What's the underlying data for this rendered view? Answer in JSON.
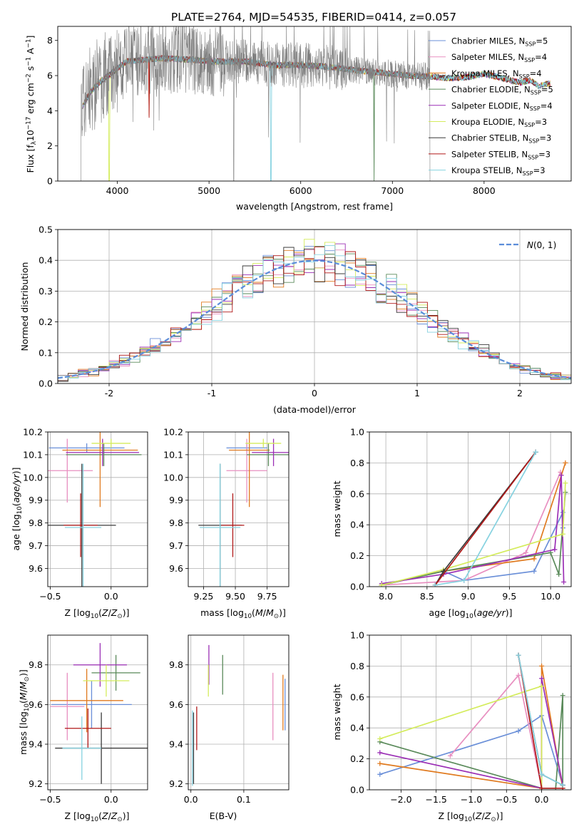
{
  "title": "PLATE=2764, MJD=54535, FIBERID=0414, z=0.057",
  "colors": {
    "gray": "#808080",
    "ch_miles": "#6a8fd8",
    "sa_miles": "#e88fc0",
    "kr_miles": "#e07a1f",
    "ch_elodie": "#5a8a5a",
    "sa_elodie": "#9b2fb5",
    "kr_elodie": "#d4ec5c",
    "ch_stelib": "#3a3a3a",
    "sa_stelib": "#b01818",
    "kr_stelib": "#86d2e0",
    "gauss": "#5b8dd9",
    "grid": "#b0b0b0"
  },
  "legend": [
    {
      "key": "ch_miles",
      "label": "Chabrier MILES, N",
      "n": "=5"
    },
    {
      "key": "sa_miles",
      "label": "Salpeter MILES, N",
      "n": "=4"
    },
    {
      "key": "kr_miles",
      "label": "Kroupa MILES, N",
      "n": "=4"
    },
    {
      "key": "ch_elodie",
      "label": "Chabrier ELODIE, N",
      "n": "=5"
    },
    {
      "key": "sa_elodie",
      "label": "Salpeter ELODIE, N",
      "n": "=4"
    },
    {
      "key": "kr_elodie",
      "label": "Kroupa ELODIE, N",
      "n": "=3"
    },
    {
      "key": "ch_stelib",
      "label": "Chabrier STELIB, N",
      "n": "=3"
    },
    {
      "key": "sa_stelib",
      "label": "Salpeter STELIB, N",
      "n": "=3"
    },
    {
      "key": "kr_stelib",
      "label": "Kroupa STELIB, N",
      "n": "=3"
    }
  ],
  "legend_sub": "SSP",
  "chart_data": [
    {
      "id": "spectrum",
      "type": "line",
      "xlabel": "wavelength [Angstrom, rest frame]",
      "ylabel_parts": [
        "Flux [f",
        "λ",
        "10",
        "−17",
        " erg cm",
        "−2",
        " s",
        "−1",
        " A",
        "−1",
        "]"
      ],
      "xlim": [
        3350,
        8950
      ],
      "ylim": [
        0,
        8.8
      ],
      "xticks": [
        4000,
        5000,
        6000,
        7000,
        8000
      ],
      "yticks": [
        0,
        2,
        4,
        6,
        8
      ],
      "continuum": [
        [
          3600,
          4.1
        ],
        [
          3700,
          5.0
        ],
        [
          3800,
          5.6
        ],
        [
          3900,
          6.0
        ],
        [
          4000,
          6.4
        ],
        [
          4100,
          6.8
        ],
        [
          4300,
          6.9
        ],
        [
          4500,
          7.0
        ],
        [
          4800,
          6.9
        ],
        [
          5100,
          6.8
        ],
        [
          5400,
          6.8
        ],
        [
          5700,
          6.6
        ],
        [
          6000,
          6.6
        ],
        [
          6300,
          6.5
        ],
        [
          6600,
          6.3
        ],
        [
          6800,
          6.2
        ],
        [
          7000,
          6.1
        ],
        [
          7200,
          6.0
        ],
        [
          7400,
          5.95
        ],
        [
          7600,
          5.85
        ],
        [
          7800,
          5.9
        ],
        [
          8000,
          6.1
        ],
        [
          8200,
          5.85
        ],
        [
          8400,
          5.6
        ],
        [
          8500,
          5.75
        ],
        [
          8600,
          5.4
        ],
        [
          8700,
          5.55
        ]
      ],
      "spectrum_range": [
        3600,
        7420
      ],
      "model_range": [
        3620,
        8720
      ]
    },
    {
      "id": "residuals",
      "type": "step",
      "xlabel": "(data-model)/error",
      "ylabel": "Normed distribution",
      "xlim": [
        -2.5,
        2.5
      ],
      "ylim": [
        0,
        0.5
      ],
      "xticks": [
        -2,
        -1,
        0,
        1,
        2
      ],
      "yticks": [
        0.0,
        0.1,
        0.2,
        0.3,
        0.4,
        0.5
      ],
      "ytick_labels": [
        "0.0",
        "0.1",
        "0.2",
        "0.3",
        "0.4",
        "0.5"
      ],
      "legend_label": "N(0,1)",
      "bins": 50
    },
    {
      "id": "age_Z",
      "type": "errorbar",
      "xlabel": "Z [log10(Z/Z⊙)]",
      "ylabel": "age  [log10(age/yr)]",
      "xlim": [
        -0.52,
        0.3
      ],
      "ylim": [
        9.52,
        10.2
      ],
      "xticks": [
        -0.5,
        0.0
      ],
      "xtick_labels": [
        "−0.5",
        "0.0"
      ],
      "yticks": [
        9.6,
        9.7,
        9.8,
        9.9,
        10.0,
        10.1,
        10.2
      ],
      "ytick_labels": [
        "9.6",
        "9.7",
        "9.8",
        "9.9",
        "10.0",
        "10.1",
        "10.2"
      ],
      "points": [
        {
          "key": "ch_miles",
          "x": -0.2,
          "y": 10.13,
          "xe": 0.31,
          "ye": 0.02
        },
        {
          "key": "sa_miles",
          "x": -0.36,
          "y": 10.03,
          "xe": 0.21,
          "ye": 0.14
        },
        {
          "key": "kr_miles",
          "x": -0.09,
          "y": 10.12,
          "xe": 0.31,
          "ye": 0.25
        },
        {
          "key": "ch_elodie",
          "x": -0.06,
          "y": 10.1,
          "xe": 0.31,
          "ye": 0.05
        },
        {
          "key": "sa_elodie",
          "x": -0.07,
          "y": 10.11,
          "xe": 0.3,
          "ye": 0.06
        },
        {
          "key": "kr_elodie",
          "x": 0.0,
          "y": 10.15,
          "xe": 0.16,
          "ye": 0.02
        },
        {
          "key": "ch_stelib",
          "x": -0.24,
          "y": 9.79,
          "xe": 0.28,
          "ye": 0.27
        },
        {
          "key": "sa_stelib",
          "x": -0.25,
          "y": 9.79,
          "xe": 0.14,
          "ye": 0.14
        },
        {
          "key": "kr_stelib",
          "x": -0.23,
          "y": 9.78,
          "xe": 0.15,
          "ye": 0.28
        }
      ]
    },
    {
      "id": "age_mass",
      "type": "errorbar",
      "xlabel": "mass [log10(M/M⊙)]",
      "ylabel": "",
      "xlim": [
        9.13,
        9.92
      ],
      "ylim": [
        9.52,
        10.2
      ],
      "xticks": [
        9.25,
        9.5,
        9.75
      ],
      "xtick_labels": [
        "9.25",
        "9.50",
        "9.75"
      ],
      "yticks": [
        9.6,
        9.7,
        9.8,
        9.9,
        10.0,
        10.1,
        10.2
      ],
      "ytick_labels": [
        "9.6",
        "9.7",
        "9.8",
        "9.9",
        "10.0",
        "10.1",
        "10.2"
      ],
      "points": [
        {
          "key": "ch_miles",
          "x": 9.59,
          "y": 10.13,
          "xe": 0.16,
          "ye": 0.02
        },
        {
          "key": "sa_miles",
          "x": 9.59,
          "y": 10.03,
          "xe": 0.16,
          "ye": 0.14
        },
        {
          "key": "kr_miles",
          "x": 9.61,
          "y": 10.12,
          "xe": 0.16,
          "ye": 0.25
        },
        {
          "key": "ch_elodie",
          "x": 9.76,
          "y": 10.1,
          "xe": 0.17,
          "ye": 0.05
        },
        {
          "key": "sa_elodie",
          "x": 9.8,
          "y": 10.11,
          "xe": 0.17,
          "ye": 0.06
        },
        {
          "key": "kr_elodie",
          "x": 9.72,
          "y": 10.15,
          "xe": 0.14,
          "ye": 0.02
        },
        {
          "key": "ch_stelib",
          "x": 9.38,
          "y": 9.79,
          "xe": 0.17,
          "ye": 0.27
        },
        {
          "key": "sa_stelib",
          "x": 9.48,
          "y": 9.79,
          "xe": 0.09,
          "ye": 0.14
        },
        {
          "key": "kr_stelib",
          "x": 9.38,
          "y": 9.78,
          "xe": 0.16,
          "ye": 0.28
        }
      ]
    },
    {
      "id": "weight_age",
      "type": "line",
      "xlabel": "age  [log10(age/yr)]",
      "ylabel": "mass weight",
      "xlim": [
        7.8,
        10.25
      ],
      "ylim": [
        0,
        1.0
      ],
      "xticks": [
        8.0,
        8.5,
        9.0,
        9.5,
        10.0
      ],
      "xtick_labels": [
        "8.0",
        "8.5",
        "9.0",
        "9.5",
        "10.0"
      ],
      "yticks": [
        0.0,
        0.2,
        0.4,
        0.6,
        0.8,
        1.0
      ],
      "ytick_labels": [
        "0.0",
        "0.2",
        "0.4",
        "0.6",
        "0.8",
        "1.0"
      ],
      "series": [
        {
          "key": "ch_miles",
          "pts": [
            [
              7.95,
              0.01
            ],
            [
              8.7,
              0.1
            ],
            [
              8.95,
              0.04
            ],
            [
              9.8,
              0.1
            ],
            [
              10.15,
              0.48
            ],
            [
              10.15,
              0.38
            ]
          ]
        },
        {
          "key": "sa_miles",
          "pts": [
            [
              7.95,
              0.01
            ],
            [
              8.95,
              0.04
            ],
            [
              9.7,
              0.22
            ],
            [
              10.12,
              0.74
            ]
          ]
        },
        {
          "key": "kr_miles",
          "pts": [
            [
              7.95,
              0.01
            ],
            [
              8.7,
              0.1
            ],
            [
              9.8,
              0.18
            ],
            [
              10.18,
              0.8
            ]
          ]
        },
        {
          "key": "ch_elodie",
          "pts": [
            [
              7.95,
              0.01
            ],
            [
              8.7,
              0.1
            ],
            [
              10.0,
              0.22
            ],
            [
              10.1,
              0.08
            ],
            [
              10.18,
              0.61
            ]
          ]
        },
        {
          "key": "sa_elodie",
          "pts": [
            [
              7.95,
              0.02
            ],
            [
              8.7,
              0.08
            ],
            [
              10.05,
              0.24
            ],
            [
              10.13,
              0.72
            ],
            [
              10.16,
              0.03
            ]
          ]
        },
        {
          "key": "kr_elodie",
          "pts": [
            [
              7.95,
              0.01
            ],
            [
              8.7,
              0.11
            ],
            [
              10.15,
              0.34
            ],
            [
              10.18,
              0.67
            ]
          ]
        },
        {
          "key": "ch_stelib",
          "pts": [
            [
              8.6,
              0.01
            ],
            [
              8.7,
              0.1
            ],
            [
              9.82,
              0.87
            ]
          ]
        },
        {
          "key": "sa_stelib",
          "pts": [
            [
              8.6,
              0.01
            ],
            [
              9.82,
              0.87
            ]
          ]
        },
        {
          "key": "kr_stelib",
          "pts": [
            [
              8.6,
              0.01
            ],
            [
              8.95,
              0.04
            ],
            [
              9.82,
              0.87
            ]
          ]
        }
      ]
    },
    {
      "id": "mass_Z",
      "type": "errorbar",
      "xlabel": "Z [log10(Z/Z⊙)]",
      "ylabel": "mass [log10(M/M⊙)]",
      "xlim": [
        -0.52,
        0.3
      ],
      "ylim": [
        9.17,
        9.95
      ],
      "xticks": [
        -0.5,
        0.0
      ],
      "xtick_labels": [
        "−0.5",
        "0.0"
      ],
      "yticks": [
        9.2,
        9.4,
        9.6,
        9.8
      ],
      "ytick_labels": [
        "9.2",
        "9.4",
        "9.6",
        "9.8"
      ],
      "points": [
        {
          "key": "ch_miles",
          "x": -0.16,
          "y": 9.6,
          "xe": 0.33,
          "ye": 0.12
        },
        {
          "key": "sa_miles",
          "x": -0.36,
          "y": 9.59,
          "xe": 0.14,
          "ye": 0.17
        },
        {
          "key": "kr_miles",
          "x": -0.2,
          "y": 9.62,
          "xe": 0.3,
          "ye": 0.16
        },
        {
          "key": "ch_elodie",
          "x": 0.04,
          "y": 9.76,
          "xe": 0.2,
          "ye": 0.09
        },
        {
          "key": "sa_elodie",
          "x": -0.09,
          "y": 9.8,
          "xe": 0.22,
          "ye": 0.11
        },
        {
          "key": "kr_elodie",
          "x": -0.04,
          "y": 9.72,
          "xe": 0.19,
          "ye": 0.08
        },
        {
          "key": "ch_stelib",
          "x": -0.08,
          "y": 9.38,
          "xe": 0.38,
          "ye": 0.18
        },
        {
          "key": "sa_stelib",
          "x": -0.19,
          "y": 9.48,
          "xe": 0.19,
          "ye": 0.1
        },
        {
          "key": "kr_stelib",
          "x": -0.24,
          "y": 9.38,
          "xe": 0.16,
          "ye": 0.16
        }
      ]
    },
    {
      "id": "mass_ebv",
      "type": "errorbar",
      "xlabel": "E(B-V)",
      "ylabel": "",
      "xlim": [
        -0.005,
        0.185
      ],
      "ylim": [
        9.17,
        9.95
      ],
      "xticks": [
        0.0,
        0.1
      ],
      "xtick_labels": [
        "0.0",
        "0.1"
      ],
      "yticks": [
        9.2,
        9.4,
        9.6,
        9.8
      ],
      "ytick_labels": [
        "9.2",
        "9.4",
        "9.6",
        "9.8"
      ],
      "points": [
        {
          "key": "ch_miles",
          "x": 0.178,
          "y": 9.6,
          "xe": 0,
          "ye": 0.13
        },
        {
          "key": "sa_miles",
          "x": 0.155,
          "y": 9.59,
          "xe": 0,
          "ye": 0.17
        },
        {
          "key": "kr_miles",
          "x": 0.174,
          "y": 9.61,
          "xe": 0,
          "ye": 0.14
        },
        {
          "key": "ch_elodie",
          "x": 0.06,
          "y": 9.75,
          "xe": 0,
          "ye": 0.1
        },
        {
          "key": "sa_elodie",
          "x": 0.034,
          "y": 9.8,
          "xe": 0,
          "ye": 0.1
        },
        {
          "key": "kr_elodie",
          "x": 0.033,
          "y": 9.72,
          "xe": 0,
          "ye": 0.08
        },
        {
          "key": "ch_stelib",
          "x": 0.005,
          "y": 9.38,
          "xe": 0,
          "ye": 0.18
        },
        {
          "key": "sa_stelib",
          "x": 0.011,
          "y": 9.48,
          "xe": 0,
          "ye": 0.11
        },
        {
          "key": "kr_stelib",
          "x": 0.003,
          "y": 9.38,
          "xe": 0,
          "ye": 0.19
        }
      ]
    },
    {
      "id": "weight_Z",
      "type": "line",
      "xlabel": "Z [log10(Z/Z⊙)]",
      "ylabel": "mass weight",
      "xlim": [
        -2.45,
        0.42
      ],
      "ylim": [
        0,
        1.0
      ],
      "xticks": [
        -2.0,
        -1.5,
        -1.0,
        -0.5,
        0.0
      ],
      "xtick_labels": [
        "−2.0",
        "−1.5",
        "−1.0",
        "−0.5",
        "0.0"
      ],
      "yticks": [
        0.0,
        0.2,
        0.4,
        0.6,
        0.8,
        1.0
      ],
      "ytick_labels": [
        "0.0",
        "0.2",
        "0.4",
        "0.6",
        "0.8",
        "1.0"
      ],
      "series": [
        {
          "key": "ch_miles",
          "pts": [
            [
              -2.3,
              0.1
            ],
            [
              -0.33,
              0.38
            ],
            [
              0.0,
              0.48
            ],
            [
              0.3,
              0.03
            ]
          ]
        },
        {
          "key": "sa_miles",
          "pts": [
            [
              -1.3,
              0.22
            ],
            [
              -0.33,
              0.74
            ],
            [
              0.0,
              0.01
            ]
          ]
        },
        {
          "key": "kr_miles",
          "pts": [
            [
              -2.3,
              0.17
            ],
            [
              0.0,
              0.01
            ],
            [
              0.0,
              0.8
            ],
            [
              0.3,
              0.01
            ]
          ]
        },
        {
          "key": "ch_elodie",
          "pts": [
            [
              -2.3,
              0.31
            ],
            [
              0.0,
              0.01
            ],
            [
              0.2,
              0.01
            ],
            [
              0.3,
              0.61
            ],
            [
              0.3,
              0.03
            ]
          ]
        },
        {
          "key": "sa_elodie",
          "pts": [
            [
              -2.3,
              0.24
            ],
            [
              0.0,
              0.01
            ],
            [
              0.0,
              0.72
            ],
            [
              0.3,
              0.03
            ]
          ]
        },
        {
          "key": "kr_elodie",
          "pts": [
            [
              -2.3,
              0.33
            ],
            [
              0.0,
              0.67
            ],
            [
              0.0,
              0.01
            ]
          ]
        },
        {
          "key": "ch_stelib",
          "pts": [
            [
              -0.33,
              0.87
            ],
            [
              0.0,
              0.1
            ],
            [
              0.3,
              0.03
            ]
          ]
        },
        {
          "key": "sa_stelib",
          "pts": [
            [
              -0.33,
              0.87
            ],
            [
              0.0,
              0.01
            ],
            [
              0.3,
              0.01
            ]
          ]
        },
        {
          "key": "kr_stelib",
          "pts": [
            [
              -0.33,
              0.87
            ],
            [
              0.0,
              0.1
            ],
            [
              0.3,
              0.03
            ]
          ]
        }
      ]
    }
  ]
}
